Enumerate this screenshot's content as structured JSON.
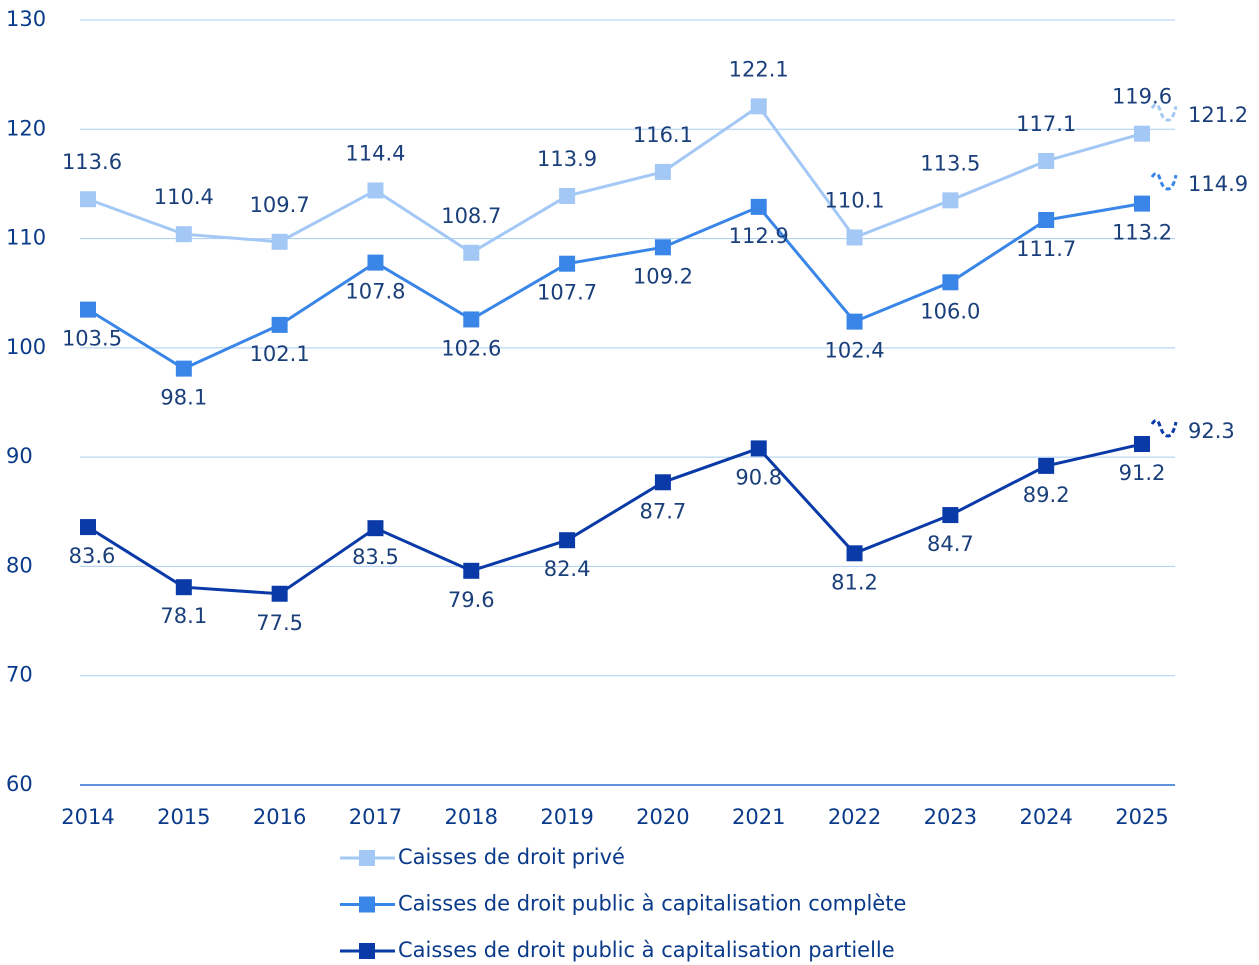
{
  "chart_data": {
    "type": "line",
    "categories": [
      "2014",
      "2015",
      "2016",
      "2017",
      "2018",
      "2019",
      "2020",
      "2021",
      "2022",
      "2023",
      "2024",
      "2025"
    ],
    "series": [
      {
        "name": "Caisses de droit privé",
        "color": "#a3c8f5",
        "values": [
          113.6,
          110.4,
          109.7,
          114.4,
          108.7,
          113.9,
          116.1,
          122.1,
          110.1,
          113.5,
          117.1,
          119.6
        ],
        "value_labels": [
          "113.6",
          "110.4",
          "109.7",
          "114.4",
          "108.7",
          "113.9",
          "116.1",
          "122.1",
          "110.1",
          "113.5",
          "117.1",
          "119.6"
        ],
        "end_value": 121.2
      },
      {
        "name": "Caisses de droit public à capitalisation complète",
        "color": "#3a86e8",
        "values": [
          103.5,
          98.1,
          102.1,
          107.8,
          102.6,
          107.7,
          109.2,
          112.9,
          102.4,
          106.0,
          111.7,
          113.2
        ],
        "value_labels": [
          "103.5",
          "98.1",
          "102.1",
          "107.8",
          "102.6",
          "107.7",
          "109.2",
          "112.9",
          "102.4",
          "106.0",
          "111.7",
          "113.2"
        ],
        "end_value": 114.9
      },
      {
        "name": "Caisses de droit public à capitalisation partielle",
        "color": "#0a3aa8",
        "values": [
          83.6,
          78.1,
          77.5,
          83.5,
          79.6,
          82.4,
          87.7,
          90.8,
          81.2,
          84.7,
          89.2,
          91.2
        ],
        "value_labels": [
          "83.6",
          "78.1",
          "77.5",
          "83.5",
          "79.6",
          "82.4",
          "87.7",
          "90.8",
          "81.2",
          "84.7",
          "89.2",
          "91.2"
        ],
        "end_value": 92.3
      }
    ],
    "ylim": [
      60,
      130
    ],
    "yticks": [
      60,
      70,
      80,
      90,
      100,
      110,
      120,
      130
    ],
    "grid": true
  }
}
